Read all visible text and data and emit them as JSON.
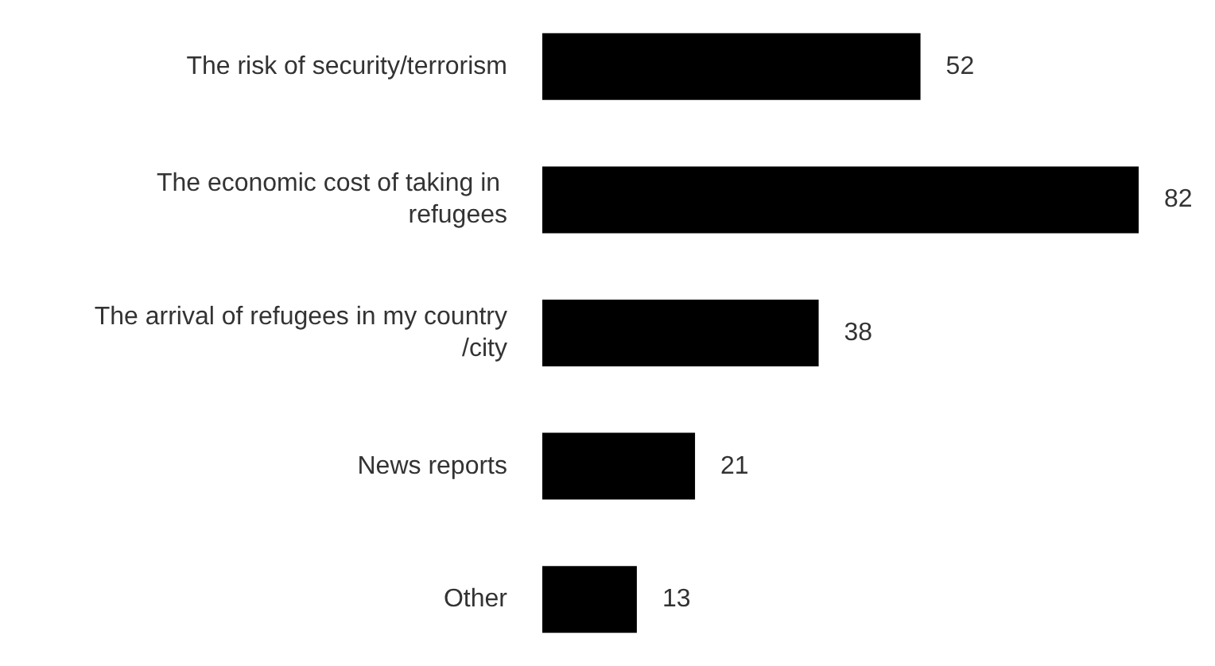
{
  "chart_data": {
    "type": "bar",
    "orientation": "horizontal",
    "categories": [
      "The risk of security/terrorism",
      "The economic cost of taking in refugees",
      "The arrival of refugees in my country/city",
      "News reports",
      "Other"
    ],
    "values": [
      52,
      82,
      38,
      21,
      13
    ],
    "color": "#000000",
    "data_labels": true
  }
}
